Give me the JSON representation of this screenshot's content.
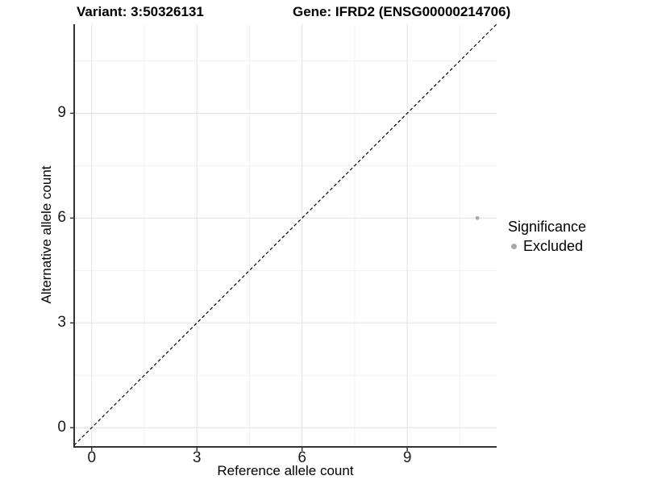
{
  "chart_data": {
    "type": "scatter",
    "titles": {
      "variant": "Variant: 3:50326131",
      "gene": "Gene: IFRD2 (ENSG00000214706)"
    },
    "xlabel": "Reference allele count",
    "ylabel": "Alternative allele count",
    "xlim": [
      -0.5,
      11.55
    ],
    "ylim": [
      -0.55,
      11.55
    ],
    "x_major_ticks": [
      0,
      3,
      6,
      9
    ],
    "y_major_ticks": [
      0,
      3,
      6,
      9
    ],
    "x_minor_gridlines": [
      1.5,
      4.5,
      7.5,
      10.5
    ],
    "y_minor_gridlines": [
      1.5,
      4.5,
      7.5,
      10.5
    ],
    "grid": true,
    "identity_line": {
      "style": "dashed",
      "from": -0.5,
      "to": 11.55
    },
    "series": [
      {
        "name": "Excluded",
        "color": "#a8a8a8",
        "points": [
          {
            "x": 11,
            "y": 6
          }
        ]
      }
    ],
    "legend": {
      "title": "Significance",
      "position": "right",
      "items": [
        {
          "label": "Excluded",
          "color": "#a8a8a8",
          "marker": "circle"
        }
      ]
    },
    "colors": {
      "gridline_major": "#e4e4e4",
      "gridline_minor": "#efefef",
      "axis": "#333333",
      "identity_line": "#000000"
    }
  }
}
